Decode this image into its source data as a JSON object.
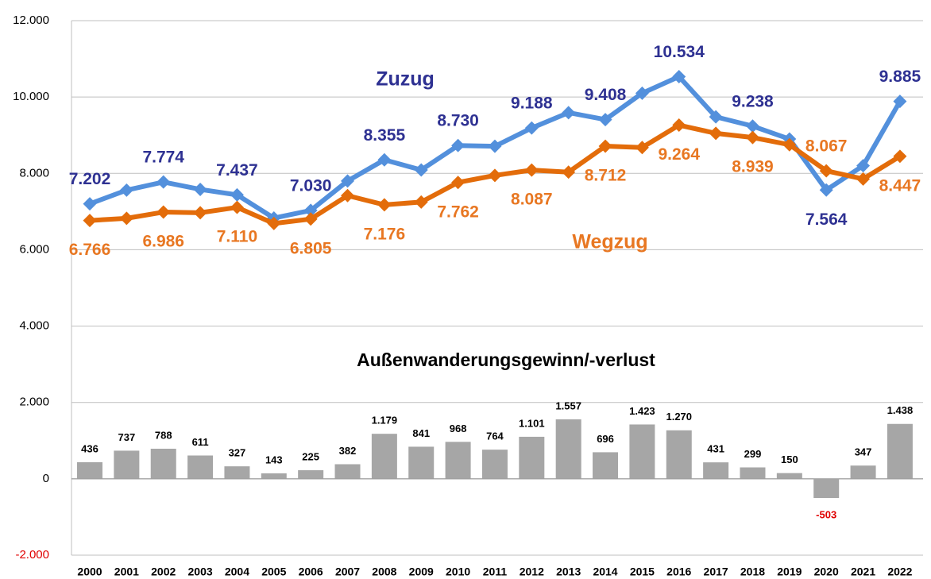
{
  "chart_data": {
    "type": "line",
    "categories": [
      "2000",
      "2001",
      "2002",
      "2003",
      "2004",
      "2005",
      "2006",
      "2007",
      "2008",
      "2009",
      "2010",
      "2011",
      "2012",
      "2013",
      "2014",
      "2015",
      "2016",
      "2017",
      "2018",
      "2019",
      "2020",
      "2021",
      "2022"
    ],
    "ylim": [
      -2000,
      12000
    ],
    "yticks": [
      {
        "value": -2000,
        "label": "-2.000"
      },
      0,
      {
        "value": 2000,
        "label": "2.000"
      },
      {
        "value": 4000,
        "label": "4.000"
      },
      {
        "value": 6000,
        "label": "6.000"
      },
      {
        "value": 8000,
        "label": "8.000"
      },
      {
        "value": 10000,
        "label": "10.000"
      },
      {
        "value": 12000,
        "label": "12.000"
      }
    ],
    "grid": true,
    "negative_color": "#e00000",
    "series": [
      {
        "name": "Zuzug",
        "type": "line",
        "color": "#5390dc",
        "label_color": "#2e3192",
        "values": [
          7202,
          7560,
          7774,
          7580,
          7437,
          6830,
          7030,
          7800,
          8355,
          8090,
          8730,
          8710,
          9188,
          9590,
          9408,
          10100,
          10534,
          9480,
          9238,
          8900,
          7564,
          8200,
          9885
        ],
        "value_labels": [
          "7.202",
          null,
          "7.774",
          null,
          "7.437",
          null,
          "7.030",
          null,
          "8.355",
          null,
          "8.730",
          null,
          "9.188",
          null,
          "9.408",
          null,
          "10.534",
          null,
          "9.238",
          null,
          "7.564",
          null,
          "9.885"
        ]
      },
      {
        "name": "Wegzug",
        "type": "line",
        "color": "#e36c0a",
        "label_color": "#e87722",
        "values": [
          6766,
          6823,
          6986,
          6969,
          7110,
          6687,
          6805,
          7418,
          7176,
          7249,
          7762,
          7946,
          8087,
          8033,
          8712,
          8677,
          9264,
          9049,
          8939,
          8750,
          8067,
          7853,
          8447
        ],
        "value_labels": [
          "6.766",
          null,
          "6.986",
          null,
          "7.110",
          null,
          "6.805",
          null,
          "7.176",
          null,
          "7.762",
          null,
          "8.087",
          null,
          "8.712",
          null,
          "9.264",
          null,
          "8.939",
          null,
          "8.067",
          null,
          "8.447"
        ]
      },
      {
        "name": "Außenwanderungsgewinn/-verlust",
        "type": "bar",
        "color": "#a6a6a6",
        "label_color": "#000000",
        "values": [
          436,
          737,
          788,
          611,
          327,
          143,
          225,
          382,
          1179,
          841,
          968,
          764,
          1101,
          1557,
          696,
          1423,
          1270,
          431,
          299,
          150,
          -503,
          347,
          1438
        ],
        "value_labels": [
          "436",
          "737",
          "788",
          "611",
          "327",
          "143",
          "225",
          "382",
          "1.179",
          "841",
          "968",
          "764",
          "1.101",
          "1.557",
          "696",
          "1.423",
          "1.270",
          "431",
          "299",
          "150",
          "-503",
          "347",
          "1.438"
        ]
      }
    ]
  }
}
